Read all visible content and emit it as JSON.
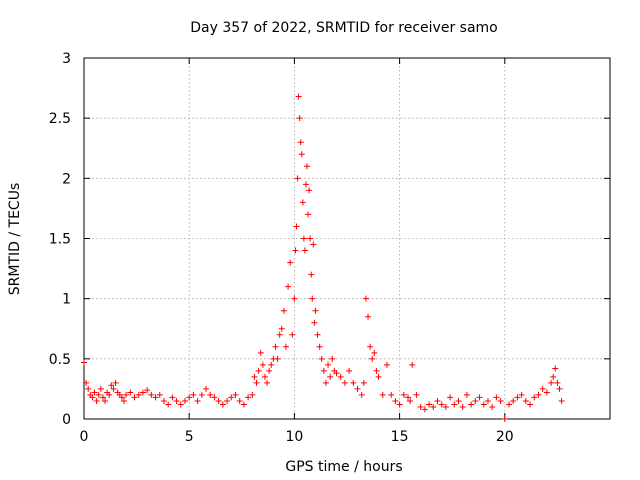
{
  "chart_data": {
    "type": "scatter",
    "title": "Day 357 of 2022, SRMTID for receiver samo",
    "xlabel": "GPS time / hours",
    "ylabel": "SRMTID / TECUs",
    "xlim": [
      0,
      25
    ],
    "ylim": [
      0,
      3
    ],
    "xticks": [
      0,
      5,
      10,
      15,
      20
    ],
    "xtick_labels": [
      "0",
      "5",
      "10",
      "15",
      "20"
    ],
    "yticks": [
      0,
      0.5,
      1,
      1.5,
      2,
      2.5,
      3
    ],
    "ytick_labels": [
      "0",
      "0.5",
      "1",
      "1.5",
      "2",
      "2.5",
      "3"
    ],
    "grid": true,
    "marker": "+",
    "color": "#ff0000",
    "series": [
      {
        "name": "SRMTID",
        "x": [
          0.0,
          0.1,
          0.2,
          0.3,
          0.4,
          0.5,
          0.6,
          0.7,
          0.8,
          0.9,
          1.0,
          1.1,
          1.2,
          1.3,
          1.4,
          1.5,
          1.6,
          1.7,
          1.8,
          1.9,
          2.0,
          2.2,
          2.4,
          2.6,
          2.8,
          3.0,
          3.2,
          3.4,
          3.6,
          3.8,
          4.0,
          4.2,
          4.4,
          4.6,
          4.8,
          5.0,
          5.2,
          5.4,
          5.6,
          5.8,
          6.0,
          6.2,
          6.4,
          6.6,
          6.8,
          7.0,
          7.2,
          7.4,
          7.6,
          7.8,
          8.0,
          8.1,
          8.2,
          8.3,
          8.4,
          8.5,
          8.6,
          8.7,
          8.8,
          8.9,
          9.0,
          9.1,
          9.2,
          9.3,
          9.4,
          9.5,
          9.6,
          9.7,
          9.8,
          9.9,
          10.0,
          10.05,
          10.1,
          10.15,
          10.2,
          10.25,
          10.3,
          10.35,
          10.4,
          10.45,
          10.5,
          10.55,
          10.6,
          10.65,
          10.7,
          10.75,
          10.8,
          10.85,
          10.9,
          10.95,
          11.0,
          11.1,
          11.2,
          11.3,
          11.4,
          11.5,
          11.6,
          11.7,
          11.8,
          11.9,
          12.0,
          12.2,
          12.4,
          12.6,
          12.8,
          13.0,
          13.2,
          13.3,
          13.4,
          13.5,
          13.6,
          13.7,
          13.8,
          13.9,
          14.0,
          14.2,
          14.4,
          14.6,
          14.8,
          15.0,
          15.2,
          15.4,
          15.5,
          15.6,
          15.8,
          16.0,
          16.2,
          16.4,
          16.6,
          16.8,
          17.0,
          17.2,
          17.4,
          17.6,
          17.8,
          18.0,
          18.2,
          18.4,
          18.6,
          18.8,
          19.0,
          19.2,
          19.4,
          19.6,
          19.8,
          20.0,
          20.2,
          20.4,
          20.6,
          20.8,
          21.0,
          21.2,
          21.4,
          21.6,
          21.8,
          22.0,
          22.2,
          22.3,
          22.4,
          22.5,
          22.6,
          22.7
        ],
        "y": [
          0.47,
          0.3,
          0.25,
          0.2,
          0.18,
          0.22,
          0.15,
          0.2,
          0.25,
          0.18,
          0.15,
          0.22,
          0.2,
          0.28,
          0.25,
          0.3,
          0.22,
          0.2,
          0.18,
          0.15,
          0.2,
          0.22,
          0.18,
          0.2,
          0.22,
          0.24,
          0.2,
          0.18,
          0.2,
          0.15,
          0.12,
          0.18,
          0.15,
          0.12,
          0.15,
          0.18,
          0.2,
          0.15,
          0.2,
          0.25,
          0.2,
          0.18,
          0.15,
          0.12,
          0.15,
          0.18,
          0.2,
          0.15,
          0.12,
          0.18,
          0.2,
          0.35,
          0.3,
          0.4,
          0.55,
          0.45,
          0.35,
          0.3,
          0.4,
          0.45,
          0.5,
          0.6,
          0.5,
          0.7,
          0.75,
          0.9,
          0.6,
          1.1,
          1.3,
          0.7,
          1.0,
          1.4,
          1.6,
          2.0,
          2.68,
          2.5,
          2.3,
          2.2,
          1.8,
          1.5,
          1.4,
          1.95,
          2.1,
          1.7,
          1.9,
          1.5,
          1.2,
          1.0,
          1.45,
          0.8,
          0.9,
          0.7,
          0.6,
          0.5,
          0.4,
          0.3,
          0.45,
          0.35,
          0.5,
          0.4,
          0.38,
          0.35,
          0.3,
          0.4,
          0.3,
          0.25,
          0.2,
          0.3,
          1.0,
          0.85,
          0.6,
          0.5,
          0.55,
          0.4,
          0.35,
          0.2,
          0.45,
          0.2,
          0.15,
          0.12,
          0.2,
          0.18,
          0.15,
          0.45,
          0.2,
          0.1,
          0.08,
          0.12,
          0.1,
          0.15,
          0.12,
          0.1,
          0.18,
          0.12,
          0.15,
          0.1,
          0.2,
          0.12,
          0.15,
          0.18,
          0.12,
          0.15,
          0.1,
          0.18,
          0.15,
          0.0,
          0.12,
          0.15,
          0.18,
          0.2,
          0.15,
          0.12,
          0.18,
          0.2,
          0.25,
          0.22,
          0.3,
          0.35,
          0.42,
          0.3,
          0.25,
          0.15
        ]
      }
    ]
  }
}
